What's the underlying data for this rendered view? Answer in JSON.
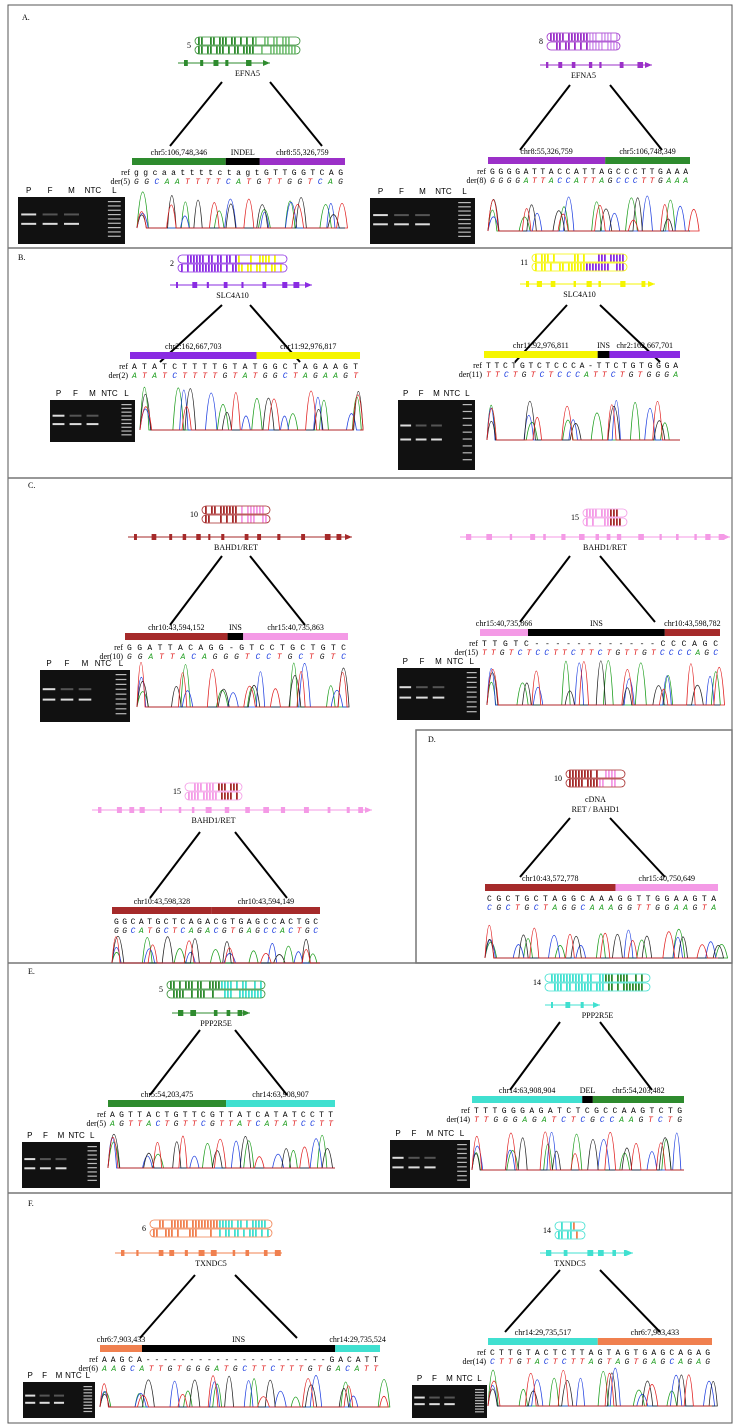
{
  "panels": [
    {
      "label": "A.",
      "figures": [
        {
          "chromosome": "5",
          "gene": "EFNA5",
          "segments": [
            {
              "label": "chr5:106,748,346",
              "color": "#2e8b2e"
            },
            {
              "label": "INDEL",
              "color": "#000000"
            },
            {
              "label": "chr8:55,326,759",
              "color": "#9b30c8"
            }
          ],
          "ref_label": "ref",
          "der_label": "der(5)",
          "ref_seq": "ggcaattttctagtGTTGGTCAG",
          "der_seq": "GGCAATTTTCATGTTGGTCAG",
          "lanes": [
            "P",
            "F",
            "M",
            "NTC",
            "L"
          ]
        },
        {
          "chromosome": "8",
          "gene": "EFNA5",
          "segments": [
            {
              "label": "chr8:55,326,759",
              "color": "#9b30c8"
            },
            {
              "label": "chr5:106,748,349",
              "color": "#2e8b2e"
            }
          ],
          "ref_label": "ref",
          "der_label": "der(8)",
          "ref_seq": "GGGGATTACCATTAGCCCTTGAAA",
          "der_seq": "GGGGATTACCATTAGCCCTTGAAA",
          "lanes": [
            "P",
            "F",
            "M",
            "NTC",
            "L"
          ]
        }
      ]
    },
    {
      "label": "B.",
      "figures": [
        {
          "chromosome": "2",
          "gene": "SLC4A10",
          "segments": [
            {
              "label": "chr2:162,667,703",
              "color": "#8a2be2"
            },
            {
              "label": "chr11:92,976,817",
              "color": "#f5f500"
            }
          ],
          "ref_label": "ref",
          "der_label": "der(2)",
          "ref_seq": "ATATCTTTTGTATGGCTAGAAGT",
          "der_seq": "ATATCTTTTGTATGGCTAGAAGT",
          "lanes": [
            "P",
            "F",
            "M",
            "NTC",
            "L"
          ]
        },
        {
          "chromosome": "11",
          "gene": "SLC4A10",
          "segments": [
            {
              "label": "chr11:92,976,811",
              "color": "#f5f500"
            },
            {
              "label": "INS",
              "color": "#000000"
            },
            {
              "label": "chr2:162,667,701",
              "color": "#8a2be2"
            }
          ],
          "ref_label": "ref",
          "der_label": "der(11)",
          "ref_seq": "TTCTGTCTCCCA-TTCTGTGGGA",
          "der_seq": "TTCTGTCTCCCATTCTGTGGGA",
          "lanes": [
            "P",
            "F",
            "M",
            "NTC",
            "L"
          ]
        }
      ]
    },
    {
      "label": "C.",
      "figures": [
        {
          "chromosome": "10",
          "gene": "BAHD1/RET",
          "segments": [
            {
              "label": "chr10:43,594,152",
              "color": "#a52a2a"
            },
            {
              "label": "INS",
              "color": "#000000"
            },
            {
              "label": "chr15:40,735,863",
              "color": "#f49ae6"
            }
          ],
          "ref_label": "ref",
          "der_label": "der(10)",
          "ref_seq": "GGATTACAGG-GTCCTGCTGTC",
          "der_seq": "GGATTACAGGGTCCTGCTGTC",
          "lanes": [
            "P",
            "F",
            "M",
            "NTC",
            "L"
          ]
        },
        {
          "chromosome": "15",
          "gene": "BAHD1/RET",
          "segments": [
            {
              "label": "chr15:40,735,866",
              "color": "#f49ae6"
            },
            {
              "label": "INS",
              "color": "#000000"
            },
            {
              "label": "chr10:43,598,782",
              "color": "#a52a2a"
            }
          ],
          "ref_label": "ref",
          "der_label": "der(15)",
          "ref_seq": "TTGTC------------CCCAGC",
          "der_seq": "TTGTCTCCTTCTTCTGTTGTCCCCAGC",
          "lanes": [
            "P",
            "F",
            "M",
            "NTC",
            "L"
          ]
        },
        {
          "chromosome": "15",
          "gene": "BAHD1/RET",
          "segments": [
            {
              "label": "chr10:43,598,328",
              "color": "#a52a2a"
            },
            {
              "label": "chr10:43,594,149",
              "color": "#a52a2a"
            }
          ],
          "ref_seq": "GGCATGCTCAGACGTGAGCCACTGC",
          "der_seq": "GGCATGCTCAGACGTGAGCCACTGC"
        }
      ]
    },
    {
      "label": "D.",
      "figures": [
        {
          "chromosome": "10",
          "transcript": "cDNA",
          "gene": "RET / BAHD1",
          "segments": [
            {
              "label": "chr10:43,572,778",
              "color": "#a52a2a"
            },
            {
              "label": "chr15:40,750,649",
              "color": "#f49ae6"
            }
          ],
          "ref_seq": "CGCTGCTAGGCAAAGGTTGGAAGTA",
          "der_seq": "CGCTGCTAGGCAAAGGTTGGAAGTA"
        }
      ]
    },
    {
      "label": "E.",
      "figures": [
        {
          "chromosome": "5",
          "gene": "PPP2R5E",
          "segments": [
            {
              "label": "chr5:54,203,475",
              "color": "#2e8b2e"
            },
            {
              "label": "chr14:63,908,907",
              "color": "#40e0d0"
            }
          ],
          "ref_label": "ref",
          "der_label": "der(5)",
          "ref_seq": "AGTTACTGTTCGTTATCATATCCTT",
          "der_seq": "AGTTACTGTTCGTTATCATATCCTT",
          "lanes": [
            "P",
            "F",
            "M",
            "NTC",
            "L"
          ]
        },
        {
          "chromosome": "14",
          "gene": "PPP2R5E",
          "segments": [
            {
              "label": "chr14:63,908,904",
              "color": "#40e0d0"
            },
            {
              "label": "DEL",
              "color": "#000000"
            },
            {
              "label": "chr5:54,203,482",
              "color": "#2e8b2e"
            }
          ],
          "ref_label": "ref",
          "der_label": "der(14)",
          "ref_seq": "TTTGGGAGATCTCGCCAAGTCTG",
          "der_seq": "TTGGGAGATCTCGCCAAGTCTG",
          "lanes": [
            "P",
            "F",
            "M",
            "NTC",
            "L"
          ]
        }
      ]
    },
    {
      "label": "F.",
      "figures": [
        {
          "chromosome": "6",
          "gene": "TXNDC5",
          "segments": [
            {
              "label": "chr6:7,903,433",
              "color": "#f0804f"
            },
            {
              "label": "INS",
              "color": "#000000"
            },
            {
              "label": "chr14:29,735,524",
              "color": "#40e0d0"
            }
          ],
          "ref_label": "ref",
          "der_label": "der(6)",
          "ref_seq": "AAGCA---------------------GACATT",
          "der_seq": "AAGCATTGTGGGATGCTTCTTTGTGACATT",
          "lanes": [
            "P",
            "F",
            "M",
            "NTC",
            "L"
          ]
        },
        {
          "chromosome": "14",
          "gene": "TXNDC5",
          "segments": [
            {
              "label": "chr14:29,735,517",
              "color": "#40e0d0"
            },
            {
              "label": "chr6:7,903,433",
              "color": "#f0804f"
            }
          ],
          "ref_label": "ref",
          "der_label": "der(14)",
          "ref_seq": "CTTGTACTCTTAGTAGTGAGCAGAG",
          "der_seq": "CTTGTACTCTTAGTAGTGAGCAGAG",
          "lanes": [
            "P",
            "F",
            "M",
            "NTC",
            "L"
          ]
        }
      ]
    }
  ]
}
